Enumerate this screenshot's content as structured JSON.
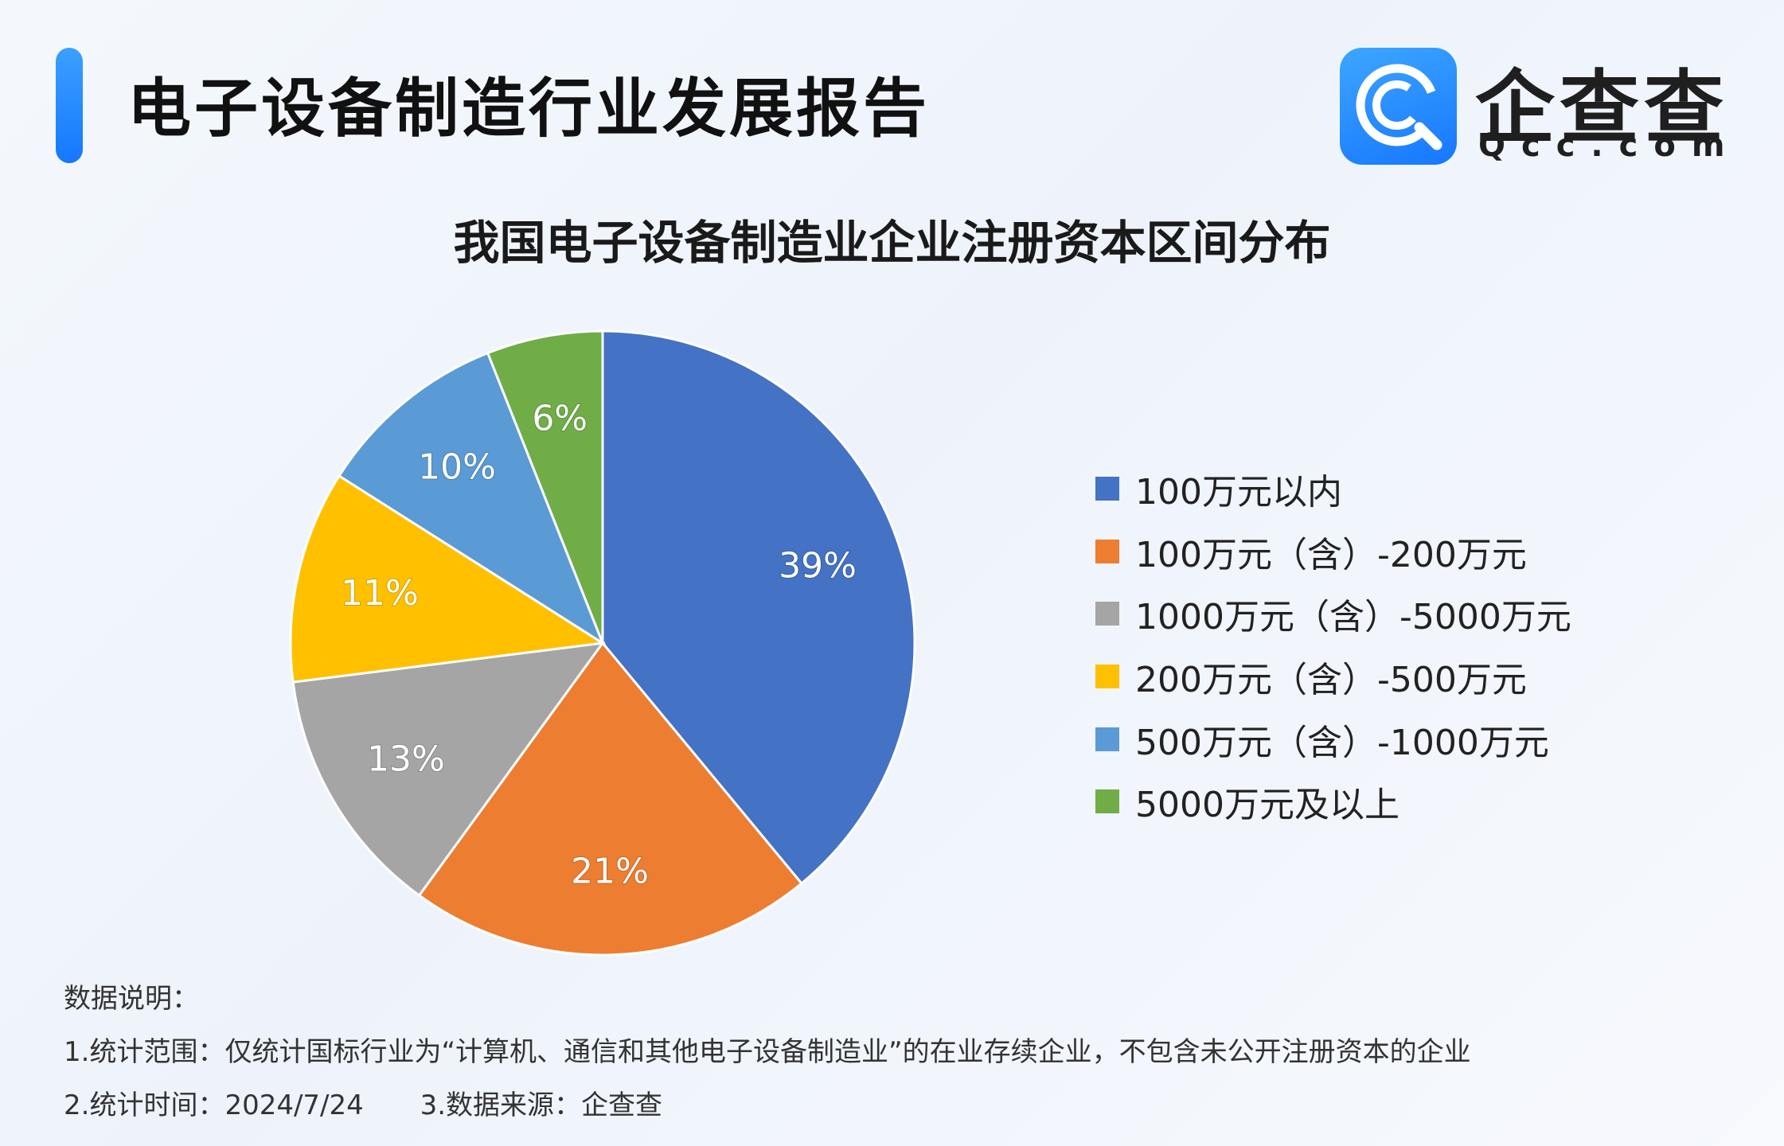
{
  "header": {
    "title": "电子设备制造行业发展报告"
  },
  "logo": {
    "name": "企查查",
    "domain": "Qcc.com",
    "brand_color": "#1677ff"
  },
  "notes": {
    "heading": "数据说明：",
    "scope": "1.统计范围：仅统计国标行业为“计算机、通信和其他电子设备制造业”的在业存续企业，不包含未公开注册资本的企业",
    "time": "2.统计时间：2024/7/24",
    "source": "3.数据来源：企查查"
  },
  "chart_data": {
    "type": "pie",
    "title": "我国电子设备制造业企业注册资本区间分布",
    "legend_position": "right",
    "slices": [
      {
        "label": "100万元以内",
        "value": 39,
        "display": "39%",
        "color": "#4472C4"
      },
      {
        "label": "100万元（含）-200万元",
        "value": 21,
        "display": "21%",
        "color": "#ED7D31"
      },
      {
        "label": "1000万元（含）-5000万元",
        "value": 13,
        "display": "13%",
        "color": "#A5A5A5"
      },
      {
        "label": "200万元（含）-500万元",
        "value": 11,
        "display": "11%",
        "color": "#FFC000"
      },
      {
        "label": "500万元（含）-1000万元",
        "value": 10,
        "display": "10%",
        "color": "#5B9BD5"
      },
      {
        "label": "5000万元及以上",
        "value": 6,
        "display": "6%",
        "color": "#70AD47"
      }
    ]
  }
}
